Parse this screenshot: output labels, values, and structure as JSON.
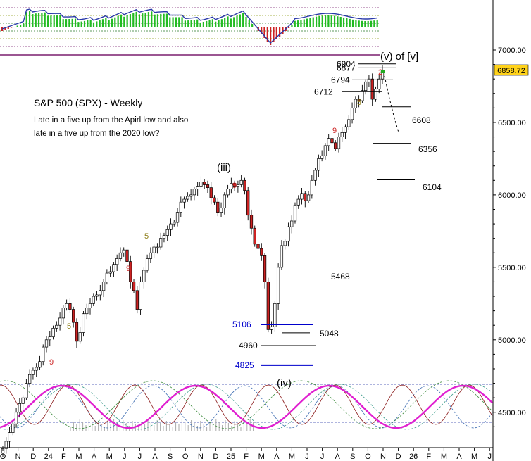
{
  "chart_data": {
    "type": "candlestick",
    "title": "S&P 500 (SPX) - Weekly",
    "subtitle_lines": [
      "Late in a five up from the Apirl low and also",
      "late in a five up from the 2020 low?"
    ],
    "y_axis": {
      "ticks": [
        7000,
        6500,
        6000,
        5500,
        5000,
        4500
      ],
      "tick_labels": [
        "7000.00",
        "6500.00",
        "6000.00",
        "5500.00",
        "5000.00",
        "4500.00"
      ],
      "range": [
        4300,
        7050
      ]
    },
    "x_axis": {
      "tick_labels": [
        "O",
        "N",
        "D",
        "24",
        "F",
        "M",
        "A",
        "M",
        "J",
        "J",
        "A",
        "S",
        "O",
        "N",
        "D",
        "25",
        "F",
        "M",
        "A",
        "M",
        "J",
        "J",
        "A",
        "S",
        "O",
        "N",
        "D",
        "26",
        "F",
        "M",
        "A",
        "M",
        "J"
      ]
    },
    "last_price": "6858.72",
    "wave_labels": [
      "(iii)",
      "(iv)",
      "(v) of [v]"
    ],
    "count_marks": {
      "red": [
        "9",
        "9",
        "9",
        "9",
        "2"
      ],
      "olive": [
        "5",
        "5",
        "5"
      ]
    },
    "levels": {
      "left_side": [
        {
          "label": "6904",
          "value": 6904,
          "color": "#000000"
        },
        {
          "label": "6877",
          "value": 6877,
          "color": "#000000"
        },
        {
          "label": "6794",
          "value": 6794,
          "color": "#000000"
        },
        {
          "label": "6712",
          "value": 6712,
          "color": "#000000"
        },
        {
          "label": "5106",
          "value": 5106,
          "color": "#0000cc"
        },
        {
          "label": "4960",
          "value": 4960,
          "color": "#000000"
        },
        {
          "label": "4825",
          "value": 4825,
          "color": "#0000cc"
        }
      ],
      "right_side": [
        {
          "label": "6608",
          "value": 6608
        },
        {
          "label": "6356",
          "value": 6356
        },
        {
          "label": "6104",
          "value": 6104
        },
        {
          "label": "5468",
          "value": 5468
        },
        {
          "label": "5048",
          "value": 5048
        }
      ]
    },
    "colors": {
      "up_candle": "#ffffff",
      "down_candle": "#cc2222",
      "indicator_up": "#22bb22",
      "indicator_down": "#cc2222",
      "cycle_magenta": "#e020d0",
      "cycle_maroon": "#8b1a1a",
      "cycle_teal": "#3a9a8a",
      "cycle_blue": "#3a6ab0",
      "level_blue": "#0000cc"
    }
  }
}
